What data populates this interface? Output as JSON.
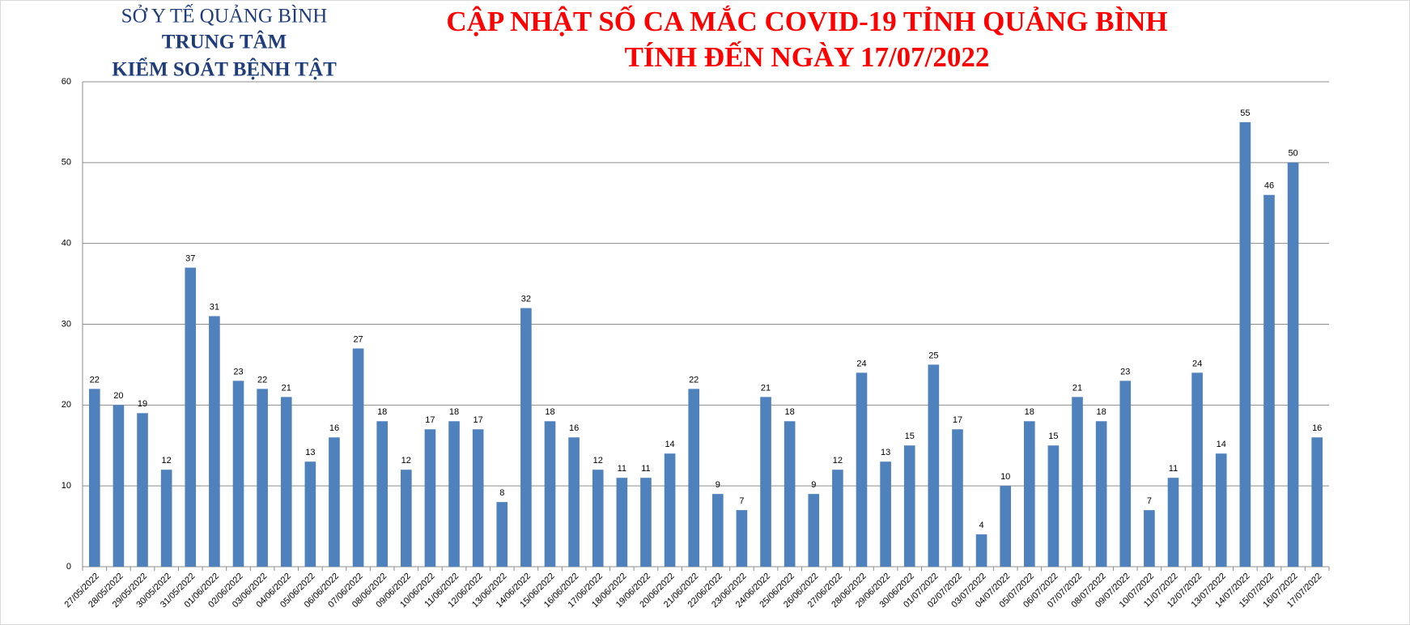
{
  "header": {
    "org": [
      "SỞ Y TẾ QUẢNG BÌNH",
      "TRUNG TÂM",
      "KIỂM SOÁT BỆNH TẬT"
    ],
    "title": [
      "CẬP NHẬT SỐ CA MẮC COVID-19 TỈNH QUẢNG BÌNH",
      "TÍNH ĐẾN NGÀY 17/07/2022"
    ]
  },
  "chart_data": {
    "type": "bar",
    "color": "#4f81bd",
    "grid": true,
    "ylim": [
      0,
      60
    ],
    "yticks": [
      0,
      10,
      20,
      30,
      40,
      50,
      60
    ],
    "categories": [
      "27/05/2022",
      "28/05/2022",
      "29/05/2022",
      "30/05/2022",
      "31/05/2022",
      "01/06/2022",
      "02/06/2022",
      "03/06/2022",
      "04/06/2022",
      "05/06/2022",
      "06/06/2022",
      "07/06/2022",
      "08/06/2022",
      "09/06/2022",
      "10/06/2022",
      "11/06/2022",
      "12/06/2022",
      "13/06/2022",
      "14/06/2022",
      "15/06/2022",
      "16/06/2022",
      "17/06/2022",
      "18/06/2022",
      "19/06/2022",
      "20/06/2022",
      "21/06/2022",
      "22/06/2022",
      "23/06/2022",
      "24/06/2022",
      "25/06/2022",
      "26/06/2022",
      "27/06/2022",
      "28/06/2022",
      "29/06/2022",
      "30/06/2022",
      "01/07/2022",
      "02/07/2022",
      "03/07/2022",
      "04/07/2022",
      "05/07/2022",
      "06/07/2022",
      "07/07/2022",
      "08/07/2022",
      "09/07/2022",
      "10/07/2022",
      "11/07/2022",
      "12/07/2022",
      "13/07/2022",
      "14/07/2022",
      "15/07/2022",
      "16/07/2022",
      "17/07/2022"
    ],
    "values": [
      22,
      20,
      19,
      12,
      37,
      31,
      23,
      22,
      21,
      13,
      16,
      27,
      18,
      12,
      17,
      18,
      17,
      8,
      32,
      18,
      16,
      12,
      11,
      11,
      14,
      22,
      9,
      7,
      21,
      18,
      9,
      12,
      24,
      13,
      15,
      25,
      17,
      4,
      10,
      18,
      15,
      21,
      18,
      23,
      7,
      11,
      24,
      14,
      55,
      46,
      50,
      16
    ]
  }
}
